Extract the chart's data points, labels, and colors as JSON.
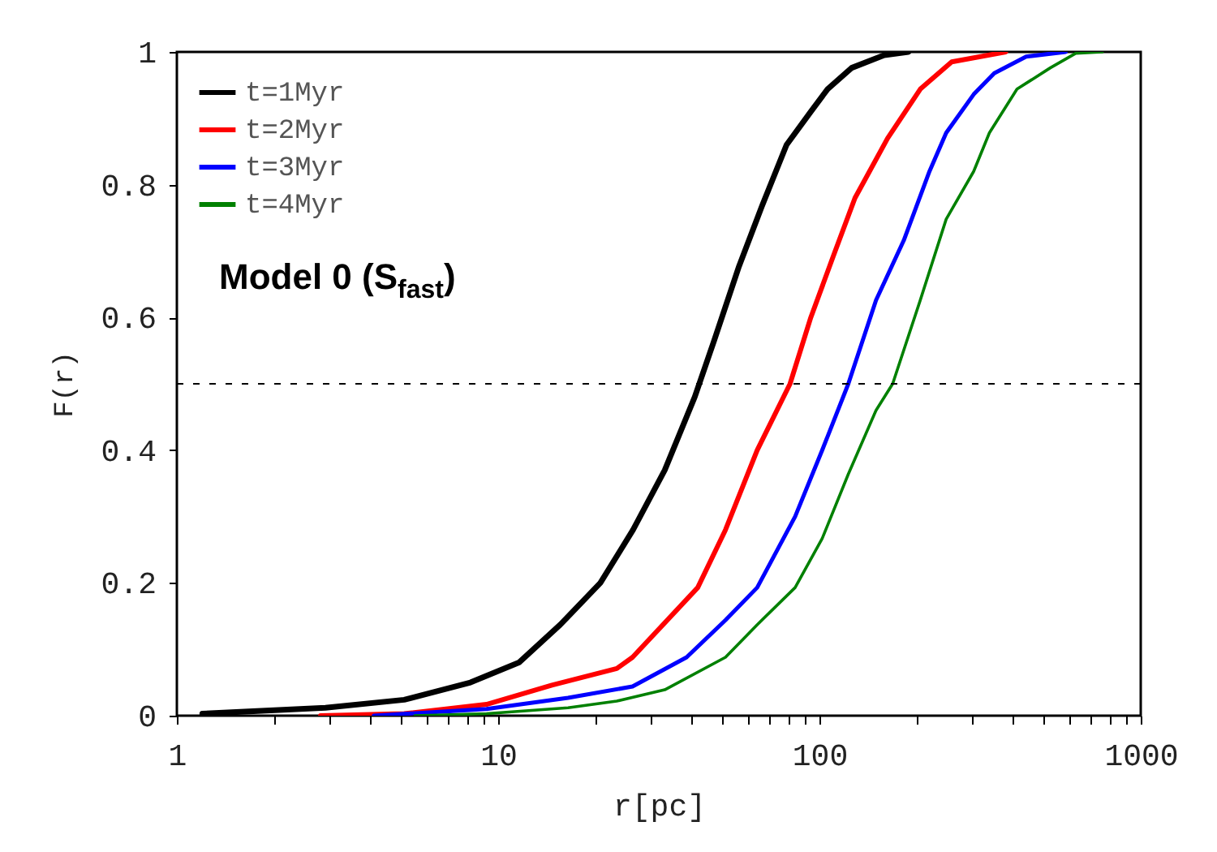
{
  "chart_data": {
    "type": "line",
    "xlabel": "r[pc]",
    "ylabel": "F(r)",
    "log": "x",
    "grid": false,
    "legend": "top left",
    "marker": "none",
    "line_style": "solid",
    "xlim": [
      1,
      1000
    ],
    "ylim": [
      0,
      1
    ],
    "xticks": [
      1,
      {
        "value": 2,
        "label": null
      },
      {
        "value": 3,
        "label": null
      },
      {
        "value": 4,
        "label": null
      },
      {
        "value": 5,
        "label": null
      },
      {
        "value": 6,
        "label": null
      },
      {
        "value": 7,
        "label": null
      },
      {
        "value": 8,
        "label": null
      },
      {
        "value": 9,
        "label": null
      },
      10,
      {
        "value": 20,
        "label": null
      },
      {
        "value": 30,
        "label": null
      },
      {
        "value": 40,
        "label": null
      },
      {
        "value": 50,
        "label": null
      },
      {
        "value": 60,
        "label": null
      },
      {
        "value": 70,
        "label": null
      },
      {
        "value": 80,
        "label": null
      },
      {
        "value": 90,
        "label": null
      },
      100,
      {
        "value": 200,
        "label": null
      },
      {
        "value": 300,
        "label": null
      },
      {
        "value": 400,
        "label": null
      },
      {
        "value": 500,
        "label": null
      },
      {
        "value": 600,
        "label": null
      },
      {
        "value": 700,
        "label": null
      },
      {
        "value": 800,
        "label": null
      },
      {
        "value": 900,
        "label": null
      },
      1000
    ],
    "yticks": [
      0,
      0.2,
      0.4,
      0.6,
      0.8,
      1
    ],
    "ref_lines": [
      {
        "axis": "y",
        "value": 0.5,
        "label": null,
        "color": "#000000",
        "line_style": "dashed"
      }
    ],
    "annotations": [
      "Model 0 (S$_{fast}$)"
    ],
    "series": [
      {
        "name": "t=1Myr",
        "color": "#000000",
        "x": [
          1.2,
          2.9,
          5.1,
          8.2,
          11.6,
          15.6,
          20.8,
          26.3,
          33,
          40.9,
          47,
          56,
          66.5,
          79,
          94,
          106,
          126,
          159,
          189
        ],
        "values": [
          0.003,
          0.012,
          0.024,
          0.05,
          0.08,
          0.137,
          0.2,
          0.28,
          0.37,
          0.48,
          0.565,
          0.675,
          0.77,
          0.86,
          0.91,
          0.944,
          0.976,
          0.995,
          1.0
        ]
      },
      {
        "name": "t=2Myr",
        "color": "#ff0000",
        "x": [
          2.8,
          5.1,
          9.2,
          14.7,
          23.4,
          26.2,
          41.8,
          51,
          64,
          81,
          94,
          110,
          129,
          163,
          206,
          258,
          380
        ],
        "values": [
          0,
          0.003,
          0.017,
          0.046,
          0.071,
          0.088,
          0.193,
          0.28,
          0.4,
          0.5,
          0.6,
          0.69,
          0.78,
          0.87,
          0.944,
          0.985,
          1.0
        ]
      },
      {
        "name": "t=3Myr",
        "color": "#0000ff",
        "x": [
          4.1,
          9.2,
          16.5,
          26.2,
          36,
          38.6,
          51,
          64,
          84,
          102,
          123,
          150,
          183,
          220,
          248,
          302,
          350,
          440,
          584
        ],
        "values": [
          0,
          0.01,
          0.027,
          0.044,
          0.08,
          0.088,
          0.144,
          0.193,
          0.3,
          0.4,
          0.5,
          0.626,
          0.716,
          0.82,
          0.878,
          0.936,
          0.968,
          0.993,
          1.0
        ]
      },
      {
        "name": "t=4Myr",
        "color": "#008000",
        "x": [
          5.5,
          9.2,
          16.5,
          23.4,
          33,
          51,
          64,
          84,
          102,
          123,
          150,
          169,
          206,
          248,
          302,
          338,
          412,
          523,
          628,
          760
        ],
        "values": [
          0,
          0.003,
          0.012,
          0.022,
          0.039,
          0.088,
          0.137,
          0.193,
          0.267,
          0.364,
          0.46,
          0.5,
          0.626,
          0.748,
          0.82,
          0.878,
          0.944,
          0.976,
          0.998,
          1.0
        ]
      }
    ]
  }
}
